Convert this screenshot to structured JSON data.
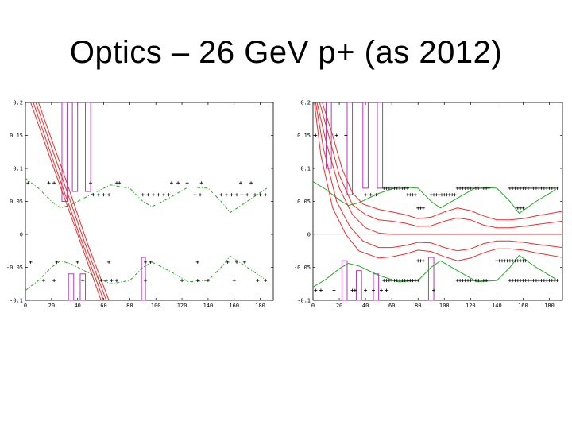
{
  "slide": {
    "title": "Optics – 26 GeV p+ (as 2012)"
  },
  "colors": {
    "aperture": "#22aa22",
    "beam": "#e83030",
    "elements": "#b03ab8",
    "markers": "#000000",
    "axes": "#000000"
  },
  "chart_data": [
    {
      "type": "line",
      "title": "",
      "xlabel": "",
      "ylabel": "",
      "xlim": [
        0,
        190
      ],
      "ylim": [
        -0.1,
        0.2
      ],
      "x_ticks": [
        "0",
        "20",
        "40",
        "60",
        "80",
        "100",
        "120",
        "140",
        "160",
        "180"
      ],
      "y_ticks": [
        "0.2",
        "0.15",
        "0.1",
        "0.05",
        "0",
        "-0.05",
        "-0.1"
      ],
      "grid": false,
      "series": [
        {
          "role": "aperture-upper",
          "style": "dash-dot",
          "x": [
            0,
            10,
            20,
            27,
            35,
            50,
            65,
            80,
            90,
            97,
            110,
            125,
            140,
            150,
            157,
            170,
            185
          ],
          "y": [
            0.085,
            0.07,
            0.05,
            0.04,
            0.045,
            0.06,
            0.075,
            0.07,
            0.05,
            0.042,
            0.055,
            0.072,
            0.07,
            0.05,
            0.033,
            0.05,
            0.07
          ]
        },
        {
          "role": "aperture-lower",
          "style": "dash-dot",
          "x": [
            0,
            10,
            20,
            27,
            35,
            50,
            65,
            80,
            90,
            97,
            110,
            125,
            140,
            150,
            157,
            170,
            185
          ],
          "y": [
            -0.085,
            -0.07,
            -0.05,
            -0.04,
            -0.045,
            -0.06,
            -0.075,
            -0.07,
            -0.05,
            -0.042,
            -0.055,
            -0.072,
            -0.07,
            -0.05,
            -0.033,
            -0.05,
            -0.07
          ]
        },
        {
          "role": "beam-1",
          "x": [
            4,
            20,
            40,
            58
          ],
          "y": [
            0.2,
            0.11,
            0.0,
            -0.1
          ]
        },
        {
          "role": "beam-2",
          "x": [
            6,
            22,
            42,
            60
          ],
          "y": [
            0.2,
            0.108,
            -0.004,
            -0.1
          ]
        },
        {
          "role": "beam-3",
          "x": [
            8,
            25,
            45,
            62
          ],
          "y": [
            0.2,
            0.104,
            -0.01,
            -0.1
          ]
        },
        {
          "role": "beam-4",
          "x": [
            10,
            28,
            48,
            64
          ],
          "y": [
            0.2,
            0.1,
            -0.016,
            -0.1
          ]
        }
      ],
      "elements": [
        {
          "x0": 28,
          "x1": 32,
          "y0": 0.05,
          "y1": 0.2
        },
        {
          "x0": 36,
          "x1": 40,
          "y0": 0.065,
          "y1": 0.2
        },
        {
          "x0": 46,
          "x1": 50,
          "y0": 0.065,
          "y1": 0.2
        },
        {
          "x0": 33,
          "x1": 37,
          "y0": -0.1,
          "y1": -0.06
        },
        {
          "x0": 42,
          "x1": 46,
          "y0": -0.1,
          "y1": -0.06
        },
        {
          "x0": 89,
          "x1": 92,
          "y0": -0.1,
          "y1": -0.035
        }
      ],
      "marker_rows": [
        {
          "y": 0.06,
          "xs": [
            52,
            56,
            60,
            64,
            90,
            94,
            98,
            102,
            106,
            110,
            130,
            134,
            150,
            154,
            158,
            162,
            166,
            170,
            176,
            180,
            184
          ]
        },
        {
          "y": 0.078,
          "xs": [
            2,
            18,
            22,
            50,
            70,
            72,
            112,
            117,
            124,
            135,
            165,
            173
          ]
        },
        {
          "y": -0.07,
          "xs": [
            14,
            22,
            44,
            58,
            62,
            66,
            70,
            92,
            120,
            132,
            140,
            160,
            178,
            184
          ]
        },
        {
          "y": -0.042,
          "xs": [
            4,
            24,
            40,
            64,
            92,
            96,
            132,
            155,
            162,
            168
          ]
        }
      ]
    },
    {
      "type": "line",
      "title": "",
      "xlabel": "",
      "ylabel": "",
      "xlim": [
        0,
        190
      ],
      "ylim": [
        -0.1,
        0.2
      ],
      "x_ticks": [
        "0",
        "20",
        "40",
        "60",
        "80",
        "100",
        "120",
        "140",
        "160",
        "180"
      ],
      "y_ticks": [
        "0.2",
        "0.15",
        "0.1",
        "0.05",
        "0",
        "-0.05",
        "-0.1"
      ],
      "grid": false,
      "series": [
        {
          "role": "aperture-upper",
          "x": [
            0,
            10,
            20,
            27,
            35,
            50,
            65,
            80,
            90,
            97,
            110,
            125,
            140,
            150,
            157,
            170,
            185
          ],
          "y": [
            0.08,
            0.068,
            0.052,
            0.044,
            0.048,
            0.062,
            0.072,
            0.07,
            0.05,
            0.04,
            0.055,
            0.072,
            0.07,
            0.05,
            0.032,
            0.05,
            0.068
          ]
        },
        {
          "role": "aperture-lower",
          "x": [
            0,
            10,
            20,
            27,
            35,
            50,
            65,
            80,
            90,
            97,
            110,
            125,
            140,
            150,
            157,
            170,
            185
          ],
          "y": [
            -0.08,
            -0.068,
            -0.052,
            -0.044,
            -0.048,
            -0.062,
            -0.072,
            -0.07,
            -0.05,
            -0.04,
            -0.055,
            -0.072,
            -0.07,
            -0.05,
            -0.032,
            -0.05,
            -0.068
          ]
        },
        {
          "role": "beam-center",
          "x": [
            3,
            10,
            20,
            30,
            40,
            50,
            60,
            80,
            100,
            120,
            140,
            160,
            190
          ],
          "y": [
            0.2,
            0.14,
            0.07,
            0.03,
            0.01,
            0.002,
            0.0,
            0.0,
            0.0,
            0.0,
            0.0,
            0.0,
            0.0
          ]
        },
        {
          "role": "beam-envelope-upper",
          "x": [
            5,
            12,
            20,
            30,
            40,
            50,
            60,
            70,
            80,
            90,
            100,
            110,
            120,
            130,
            140,
            150,
            160,
            170,
            190
          ],
          "y": [
            0.2,
            0.15,
            0.09,
            0.045,
            0.03,
            0.022,
            0.02,
            0.017,
            0.012,
            0.013,
            0.02,
            0.025,
            0.022,
            0.014,
            0.01,
            0.01,
            0.012,
            0.015,
            0.02
          ]
        },
        {
          "role": "beam-envelope-lower",
          "x": [
            2,
            8,
            18,
            28,
            38,
            50,
            60,
            70,
            80,
            90,
            100,
            110,
            120,
            130,
            140,
            150,
            160,
            170,
            190
          ],
          "y": [
            0.2,
            0.13,
            0.05,
            0.012,
            -0.01,
            -0.02,
            -0.02,
            -0.017,
            -0.012,
            -0.013,
            -0.02,
            -0.025,
            -0.022,
            -0.014,
            -0.01,
            -0.01,
            -0.012,
            -0.015,
            -0.02
          ]
        },
        {
          "role": "beam-outer-upper",
          "x": [
            7,
            15,
            22,
            30,
            38,
            50,
            60,
            70,
            80,
            90,
            100,
            110,
            120,
            130,
            140,
            150,
            160,
            170,
            190
          ],
          "y": [
            0.2,
            0.15,
            0.1,
            0.063,
            0.046,
            0.038,
            0.034,
            0.03,
            0.024,
            0.026,
            0.034,
            0.04,
            0.036,
            0.028,
            0.022,
            0.022,
            0.024,
            0.028,
            0.035
          ]
        },
        {
          "role": "beam-outer-lower",
          "x": [
            1,
            6,
            15,
            25,
            35,
            50,
            60,
            70,
            80,
            90,
            100,
            110,
            120,
            130,
            140,
            150,
            160,
            170,
            190
          ],
          "y": [
            0.2,
            0.12,
            0.04,
            0.0,
            -0.025,
            -0.036,
            -0.034,
            -0.03,
            -0.024,
            -0.026,
            -0.034,
            -0.04,
            -0.036,
            -0.028,
            -0.022,
            -0.022,
            -0.024,
            -0.028,
            -0.035
          ]
        }
      ],
      "elements": [
        {
          "x0": 10,
          "x1": 14,
          "y0": 0.1,
          "y1": 0.2
        },
        {
          "x0": 26,
          "x1": 30,
          "y0": 0.06,
          "y1": 0.2
        },
        {
          "x0": 38,
          "x1": 42,
          "y0": 0.07,
          "y1": 0.2
        },
        {
          "x0": 49,
          "x1": 53,
          "y0": 0.07,
          "y1": 0.2
        },
        {
          "x0": 22,
          "x1": 26,
          "y0": -0.1,
          "y1": -0.04
        },
        {
          "x0": 33,
          "x1": 37,
          "y0": -0.1,
          "y1": -0.055
        },
        {
          "x0": 46,
          "x1": 50,
          "y0": -0.1,
          "y1": -0.06
        },
        {
          "x0": 88,
          "x1": 92,
          "y0": -0.1,
          "y1": -0.035
        }
      ],
      "marker_rows": [
        {
          "y": 0.07,
          "xs": [
            54,
            56,
            58,
            60,
            62,
            64,
            66,
            68,
            70,
            72,
            110,
            112,
            114,
            116,
            118,
            120,
            122,
            124,
            126,
            128,
            130,
            132,
            134,
            150,
            152,
            154,
            156,
            158,
            160,
            162,
            164,
            166,
            168,
            170,
            172,
            174,
            176,
            178,
            180,
            182,
            184,
            186
          ]
        },
        {
          "y": 0.06,
          "xs": [
            40,
            44,
            48,
            72,
            74,
            76,
            78,
            90,
            92,
            94,
            96,
            98,
            100,
            102,
            104,
            106,
            108
          ]
        },
        {
          "y": 0.04,
          "xs": [
            80,
            82,
            84,
            156,
            158,
            160
          ]
        },
        {
          "y": -0.07,
          "xs": [
            54,
            56,
            58,
            60,
            62,
            64,
            66,
            68,
            70,
            72,
            74,
            76,
            78,
            80,
            110,
            112,
            114,
            116,
            118,
            120,
            122,
            124,
            126,
            128,
            130,
            132,
            150,
            152,
            154,
            156,
            158,
            160,
            162,
            164,
            166,
            168,
            170,
            172,
            174,
            176,
            178,
            180,
            182,
            184,
            186
          ]
        },
        {
          "y": -0.04,
          "xs": [
            80,
            82,
            84,
            140,
            142,
            144,
            146,
            148,
            150,
            152,
            154,
            156,
            158,
            160,
            162
          ]
        },
        {
          "y": 0.15,
          "xs": [
            2,
            18,
            25
          ]
        },
        {
          "y": -0.085,
          "xs": [
            2,
            6,
            16,
            30,
            32,
            40,
            46,
            52,
            56,
            92
          ]
        }
      ]
    }
  ]
}
